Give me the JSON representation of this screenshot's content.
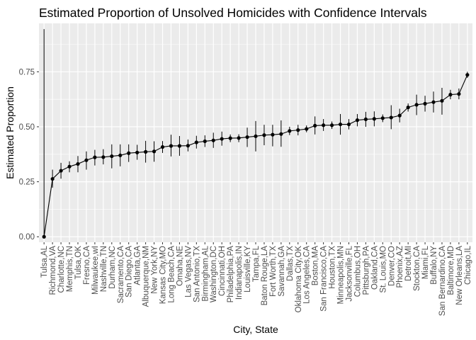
{
  "chart_data": {
    "type": "scatter",
    "title": "Estimated Proportion of Unsolved Homicides with Confidence Intervals",
    "xlabel": "City, State",
    "ylabel": "Estimated Proportion",
    "ylim": [
      -0.025,
      0.97
    ],
    "yticks": [
      0.0,
      0.25,
      0.5,
      0.75
    ],
    "ytick_labels": [
      "0.00",
      "0.25",
      "0.50",
      "0.75"
    ],
    "grid": true,
    "legend": "none",
    "connected_line": true,
    "colors": {
      "panel": "#ebebeb",
      "grid": "#ffffff",
      "marks": "#000000"
    },
    "categories": [
      "Tulsa,AL",
      "Richmond,VA",
      "Charlotte,NC",
      "Memphis,TN",
      "Tulsa,OK",
      "Fresno,CA",
      "Milwaukee,wI",
      "Nashville,TN",
      "Durham,NC",
      "Sacramento,CA",
      "San Diego,CA",
      "Atlanta,GA",
      "Albuquerque,NM",
      "New York,NY",
      "Kansas City,MO",
      "Long Beach,CA",
      "Omaha,NE",
      "Las Vegas,NV",
      "San Antonio,TX",
      "Birmingham,AL",
      "Washington,DC",
      "Cincinnati,OH",
      "Philadelphia,PA",
      "Indianapolis,IN",
      "Louisville,KY",
      "Tampa,FL",
      "Baton Rouge,LA",
      "Fort Worth,TX",
      "Savannah,GA",
      "Dallas,TX",
      "Oklahoma City,OK",
      "Los Angeles,CA",
      "Boston,MA",
      "San Francisco,CA",
      "Houston,TX",
      "Minneapolis,MN",
      "Jacksonville,FL",
      "Columbus,OH",
      "Pittsburgh,PA",
      "Oakland,CA",
      "St. Louis,MO",
      "Denver,CO",
      "Phoenix,AZ",
      "Detroit,MI",
      "Stockton,CA",
      "Miami,FL",
      "Buffalo,NY",
      "San Bernardino,CA",
      "Baltimore,MD",
      "New Orleans,LA",
      "Chicago,IL"
    ],
    "estimate": [
      0.0,
      0.263,
      0.3,
      0.319,
      0.331,
      0.348,
      0.361,
      0.362,
      0.366,
      0.37,
      0.38,
      0.383,
      0.386,
      0.388,
      0.408,
      0.413,
      0.413,
      0.414,
      0.429,
      0.434,
      0.438,
      0.445,
      0.448,
      0.449,
      0.453,
      0.457,
      0.462,
      0.464,
      0.467,
      0.481,
      0.485,
      0.49,
      0.505,
      0.507,
      0.507,
      0.511,
      0.511,
      0.53,
      0.534,
      0.536,
      0.539,
      0.542,
      0.551,
      0.588,
      0.6,
      0.605,
      0.612,
      0.618,
      0.646,
      0.649,
      0.736
    ],
    "ci_low": [
      0.0,
      0.223,
      0.264,
      0.293,
      0.293,
      0.305,
      0.324,
      0.329,
      0.311,
      0.32,
      0.34,
      0.35,
      0.337,
      0.341,
      0.381,
      0.365,
      0.368,
      0.388,
      0.401,
      0.408,
      0.404,
      0.414,
      0.43,
      0.43,
      0.408,
      0.388,
      0.416,
      0.411,
      0.409,
      0.462,
      0.461,
      0.475,
      0.465,
      0.481,
      0.49,
      0.464,
      0.488,
      0.502,
      0.5,
      0.502,
      0.521,
      0.489,
      0.52,
      0.569,
      0.553,
      0.569,
      0.565,
      0.555,
      0.625,
      0.625,
      0.722
    ],
    "ci_high": [
      0.944,
      0.305,
      0.336,
      0.343,
      0.367,
      0.388,
      0.395,
      0.398,
      0.42,
      0.42,
      0.42,
      0.418,
      0.436,
      0.434,
      0.435,
      0.464,
      0.458,
      0.442,
      0.459,
      0.461,
      0.473,
      0.478,
      0.465,
      0.466,
      0.496,
      0.526,
      0.509,
      0.509,
      0.529,
      0.5,
      0.509,
      0.506,
      0.547,
      0.535,
      0.524,
      0.558,
      0.535,
      0.558,
      0.568,
      0.57,
      0.556,
      0.598,
      0.582,
      0.606,
      0.646,
      0.641,
      0.66,
      0.677,
      0.668,
      0.674,
      0.75
    ]
  }
}
